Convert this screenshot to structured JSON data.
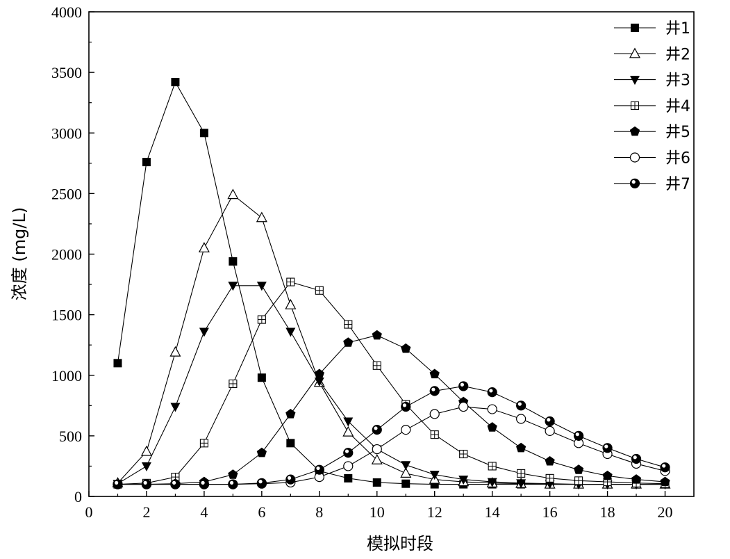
{
  "chart_data": {
    "type": "line",
    "title": "",
    "xlabel": "模拟时段",
    "ylabel": "浓度 (mg/L)",
    "xlim": [
      0,
      21
    ],
    "ylim": [
      0,
      4000
    ],
    "xticks": [
      0,
      2,
      4,
      6,
      8,
      10,
      12,
      14,
      16,
      18,
      20
    ],
    "yticks": [
      0,
      500,
      1000,
      1500,
      2000,
      2500,
      3000,
      3500,
      4000
    ],
    "grid": false,
    "legend_position": "top-right",
    "x": [
      1,
      2,
      3,
      4,
      5,
      6,
      7,
      8,
      9,
      10,
      11,
      12,
      13,
      14,
      15,
      16,
      17,
      18,
      19,
      20
    ],
    "series": [
      {
        "name": "井1",
        "marker": "filled-square",
        "values": [
          1100,
          2760,
          3420,
          3000,
          1940,
          980,
          440,
          210,
          150,
          115,
          105,
          100,
          100,
          100,
          100,
          100,
          100,
          100,
          100,
          100
        ]
      },
      {
        "name": "井2",
        "marker": "open-triangle-up",
        "values": [
          110,
          370,
          1190,
          2050,
          2490,
          2300,
          1580,
          940,
          530,
          300,
          190,
          140,
          120,
          110,
          105,
          100,
          100,
          100,
          100,
          100
        ]
      },
      {
        "name": "井3",
        "marker": "filled-triangle-down",
        "values": [
          105,
          250,
          740,
          1360,
          1740,
          1740,
          1360,
          950,
          620,
          390,
          260,
          180,
          140,
          120,
          110,
          105,
          100,
          100,
          100,
          100
        ]
      },
      {
        "name": "井4",
        "marker": "crossed-square",
        "values": [
          100,
          110,
          160,
          440,
          930,
          1460,
          1770,
          1700,
          1420,
          1080,
          760,
          510,
          350,
          250,
          190,
          150,
          130,
          120,
          110,
          105
        ]
      },
      {
        "name": "井5",
        "marker": "filled-pentagon",
        "values": [
          100,
          100,
          105,
          120,
          180,
          360,
          680,
          1010,
          1270,
          1330,
          1220,
          1010,
          780,
          570,
          400,
          290,
          220,
          170,
          140,
          120
        ]
      },
      {
        "name": "井6",
        "marker": "open-circle",
        "values": [
          100,
          100,
          100,
          100,
          100,
          105,
          115,
          160,
          250,
          390,
          550,
          680,
          740,
          720,
          640,
          540,
          440,
          350,
          270,
          210
        ]
      },
      {
        "name": "井7",
        "marker": "half-filled-circle",
        "values": [
          100,
          100,
          100,
          100,
          100,
          110,
          140,
          220,
          360,
          550,
          740,
          870,
          910,
          860,
          750,
          620,
          500,
          400,
          310,
          240
        ]
      }
    ]
  }
}
